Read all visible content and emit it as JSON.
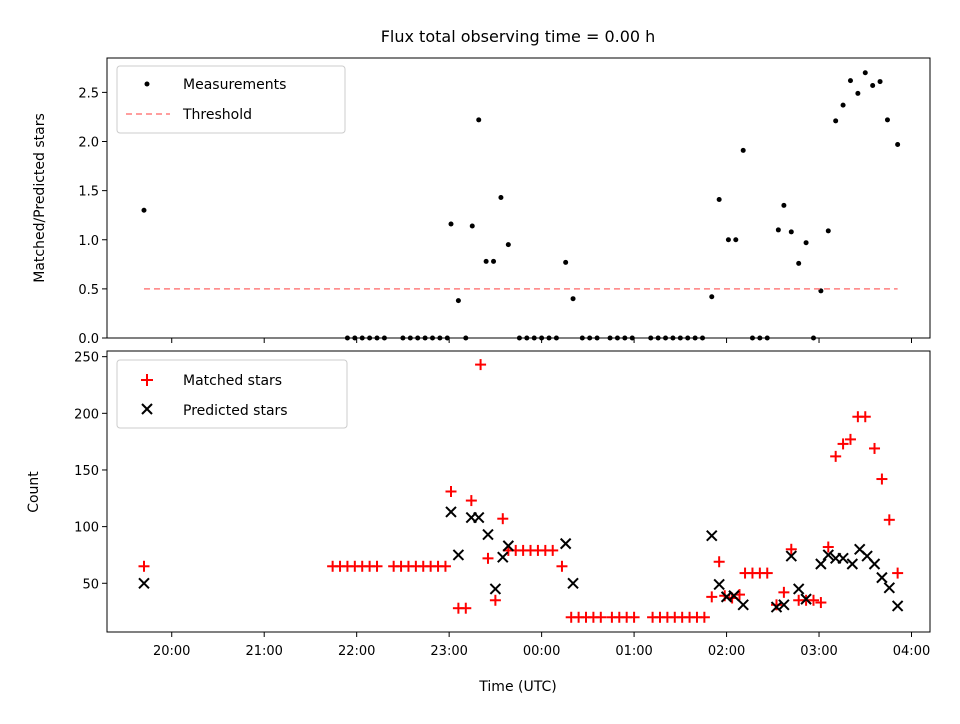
{
  "chart_data": {
    "title": "Flux total observing time = 0.00 h",
    "xlabel": "Time (UTC)",
    "x_unit": "hours since 00:00 UTC (negative = previous day)",
    "x_range": [
      -4.7,
      4.2
    ],
    "x_ticks": [
      {
        "t": -4,
        "label": "20:00"
      },
      {
        "t": -3,
        "label": "21:00"
      },
      {
        "t": -2,
        "label": "22:00"
      },
      {
        "t": -1,
        "label": "23:00"
      },
      {
        "t": 0,
        "label": "00:00"
      },
      {
        "t": 1,
        "label": "01:00"
      },
      {
        "t": 2,
        "label": "02:00"
      },
      {
        "t": 3,
        "label": "03:00"
      },
      {
        "t": 4,
        "label": "04:00"
      }
    ],
    "panels": [
      {
        "type": "scatter",
        "ylabel": "Matched/Predicted stars",
        "ylim": [
          0,
          2.85
        ],
        "yticks": [
          0.0,
          0.5,
          1.0,
          1.5,
          2.0,
          2.5
        ],
        "legend_position": "upper left",
        "series": [
          {
            "name": "Measurements",
            "kind": "dot",
            "color": "#000000",
            "points": [
              [
                -4.3,
                1.3
              ],
              [
                -2.1,
                0
              ],
              [
                -2.02,
                0
              ],
              [
                -1.94,
                0
              ],
              [
                -1.86,
                0
              ],
              [
                -1.78,
                0
              ],
              [
                -1.7,
                0
              ],
              [
                -1.5,
                0
              ],
              [
                -1.42,
                0
              ],
              [
                -1.34,
                0
              ],
              [
                -1.26,
                0
              ],
              [
                -1.18,
                0
              ],
              [
                -1.1,
                0
              ],
              [
                -1.02,
                0
              ],
              [
                -0.98,
                1.16
              ],
              [
                -0.9,
                0.38
              ],
              [
                -0.82,
                0
              ],
              [
                -0.75,
                1.14
              ],
              [
                -0.68,
                2.22
              ],
              [
                -0.6,
                0.78
              ],
              [
                -0.52,
                0.78
              ],
              [
                -0.44,
                1.43
              ],
              [
                -0.36,
                0.95
              ],
              [
                -0.24,
                0
              ],
              [
                -0.16,
                0
              ],
              [
                -0.08,
                0
              ],
              [
                0.0,
                0
              ],
              [
                0.08,
                0
              ],
              [
                0.16,
                0
              ],
              [
                0.26,
                0.77
              ],
              [
                0.34,
                0.4
              ],
              [
                0.44,
                0
              ],
              [
                0.52,
                0
              ],
              [
                0.6,
                0
              ],
              [
                0.74,
                0
              ],
              [
                0.82,
                0
              ],
              [
                0.9,
                0
              ],
              [
                0.98,
                0
              ],
              [
                1.18,
                0
              ],
              [
                1.26,
                0
              ],
              [
                1.34,
                0
              ],
              [
                1.42,
                0
              ],
              [
                1.5,
                0
              ],
              [
                1.58,
                0
              ],
              [
                1.66,
                0
              ],
              [
                1.74,
                0
              ],
              [
                1.84,
                0.42
              ],
              [
                1.92,
                1.41
              ],
              [
                2.02,
                1.0
              ],
              [
                2.1,
                1.0
              ],
              [
                2.18,
                1.91
              ],
              [
                2.28,
                0
              ],
              [
                2.36,
                0
              ],
              [
                2.44,
                0
              ],
              [
                2.56,
                1.1
              ],
              [
                2.62,
                1.35
              ],
              [
                2.7,
                1.08
              ],
              [
                2.78,
                0.76
              ],
              [
                2.86,
                0.97
              ],
              [
                2.94,
                0
              ],
              [
                3.02,
                0.48
              ],
              [
                3.1,
                1.09
              ],
              [
                3.18,
                2.21
              ],
              [
                3.26,
                2.37
              ],
              [
                3.34,
                2.62
              ],
              [
                3.42,
                2.49
              ],
              [
                3.5,
                2.7
              ],
              [
                3.58,
                2.57
              ],
              [
                3.66,
                2.61
              ],
              [
                3.74,
                2.22
              ],
              [
                3.85,
                1.97
              ]
            ]
          },
          {
            "name": "Threshold",
            "kind": "dashed-line",
            "color": "#ff7f7f",
            "points": [
              [
                -4.3,
                0.5
              ],
              [
                3.85,
                0.5
              ]
            ]
          }
        ]
      },
      {
        "type": "scatter",
        "ylabel": "Count",
        "ylim": [
          7,
          255
        ],
        "yticks": [
          50,
          100,
          150,
          200,
          250
        ],
        "legend_position": "upper left",
        "series": [
          {
            "name": "Matched stars",
            "kind": "plus",
            "color": "#ff0000",
            "points": [
              [
                -4.3,
                65
              ],
              [
                -2.26,
                65
              ],
              [
                -2.18,
                65
              ],
              [
                -2.1,
                65
              ],
              [
                -2.02,
                65
              ],
              [
                -1.94,
                65
              ],
              [
                -1.86,
                65
              ],
              [
                -1.78,
                65
              ],
              [
                -1.6,
                65
              ],
              [
                -1.52,
                65
              ],
              [
                -1.44,
                65
              ],
              [
                -1.36,
                65
              ],
              [
                -1.28,
                65
              ],
              [
                -1.2,
                65
              ],
              [
                -1.12,
                65
              ],
              [
                -1.04,
                65
              ],
              [
                -0.98,
                131
              ],
              [
                -0.9,
                28
              ],
              [
                -0.82,
                28
              ],
              [
                -0.76,
                123
              ],
              [
                -0.66,
                243
              ],
              [
                -0.58,
                72
              ],
              [
                -0.5,
                35
              ],
              [
                -0.42,
                107
              ],
              [
                -0.36,
                79
              ],
              [
                -0.28,
                79
              ],
              [
                -0.2,
                79
              ],
              [
                -0.12,
                79
              ],
              [
                -0.04,
                79
              ],
              [
                0.04,
                79
              ],
              [
                0.12,
                79
              ],
              [
                0.22,
                65
              ],
              [
                0.32,
                20
              ],
              [
                0.4,
                20
              ],
              [
                0.48,
                20
              ],
              [
                0.56,
                20
              ],
              [
                0.64,
                20
              ],
              [
                0.76,
                20
              ],
              [
                0.84,
                20
              ],
              [
                0.92,
                20
              ],
              [
                1.0,
                20
              ],
              [
                1.2,
                20
              ],
              [
                1.28,
                20
              ],
              [
                1.36,
                20
              ],
              [
                1.44,
                20
              ],
              [
                1.52,
                20
              ],
              [
                1.6,
                20
              ],
              [
                1.68,
                20
              ],
              [
                1.76,
                20
              ],
              [
                1.84,
                38
              ],
              [
                1.92,
                69
              ],
              [
                1.98,
                39
              ],
              [
                2.06,
                37
              ],
              [
                2.14,
                40
              ],
              [
                2.2,
                59
              ],
              [
                2.28,
                59
              ],
              [
                2.36,
                59
              ],
              [
                2.44,
                59
              ],
              [
                2.54,
                31
              ],
              [
                2.62,
                42
              ],
              [
                2.7,
                80
              ],
              [
                2.78,
                35
              ],
              [
                2.86,
                35
              ],
              [
                2.94,
                35
              ],
              [
                3.02,
                33
              ],
              [
                3.1,
                82
              ],
              [
                3.18,
                162
              ],
              [
                3.26,
                173
              ],
              [
                3.34,
                177
              ],
              [
                3.42,
                197
              ],
              [
                3.5,
                197
              ],
              [
                3.6,
                169
              ],
              [
                3.68,
                142
              ],
              [
                3.76,
                106
              ],
              [
                3.85,
                59
              ]
            ]
          },
          {
            "name": "Predicted stars",
            "kind": "x",
            "color": "#000000",
            "points": [
              [
                -4.3,
                50
              ],
              [
                -0.98,
                113
              ],
              [
                -0.9,
                75
              ],
              [
                -0.76,
                108
              ],
              [
                -0.68,
                108
              ],
              [
                -0.58,
                93
              ],
              [
                -0.5,
                45
              ],
              [
                -0.42,
                73
              ],
              [
                -0.36,
                83
              ],
              [
                0.26,
                85
              ],
              [
                0.34,
                50
              ],
              [
                1.84,
                92
              ],
              [
                1.92,
                49
              ],
              [
                2.0,
                38
              ],
              [
                2.08,
                39
              ],
              [
                2.18,
                31
              ],
              [
                2.54,
                29
              ],
              [
                2.62,
                31
              ],
              [
                2.7,
                74
              ],
              [
                2.78,
                45
              ],
              [
                2.86,
                36
              ],
              [
                3.02,
                67
              ],
              [
                3.1,
                75
              ],
              [
                3.18,
                72
              ],
              [
                3.26,
                72
              ],
              [
                3.36,
                67
              ],
              [
                3.44,
                80
              ],
              [
                3.52,
                74
              ],
              [
                3.6,
                67
              ],
              [
                3.68,
                55
              ],
              [
                3.76,
                46
              ],
              [
                3.85,
                30
              ]
            ]
          }
        ]
      }
    ]
  }
}
